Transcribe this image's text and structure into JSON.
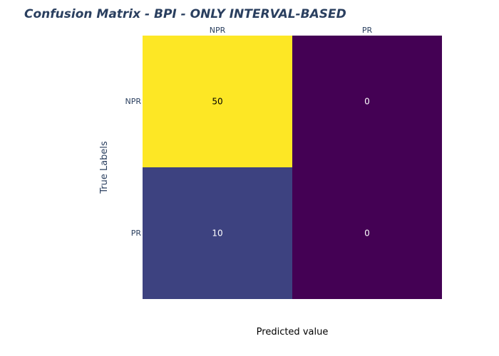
{
  "chart_data": {
    "type": "heatmap",
    "title": "Confusion Matrix - BPI - ONLY INTERVAL-BASED",
    "xlabel": "Predicted value",
    "ylabel": "True Labels",
    "x_categories": [
      "NPR",
      "PR"
    ],
    "y_categories": [
      "NPR",
      "PR"
    ],
    "values": [
      [
        50,
        0
      ],
      [
        10,
        0
      ]
    ],
    "value_range": [
      0,
      50
    ],
    "colorscale": [
      "#440154",
      "#3b528b",
      "#21918c",
      "#5ec962",
      "#fde725"
    ],
    "x_ticks_position": "top",
    "legend": "none",
    "grid": false
  },
  "colors": {
    "title": "#2a3f5f",
    "tick_text": "#2a3f5f",
    "ylabel_text": "#2a3f5f",
    "xlabel_text": "#000000",
    "dark_cell_text": "#000000",
    "light_cell_text": "#ffffff"
  }
}
